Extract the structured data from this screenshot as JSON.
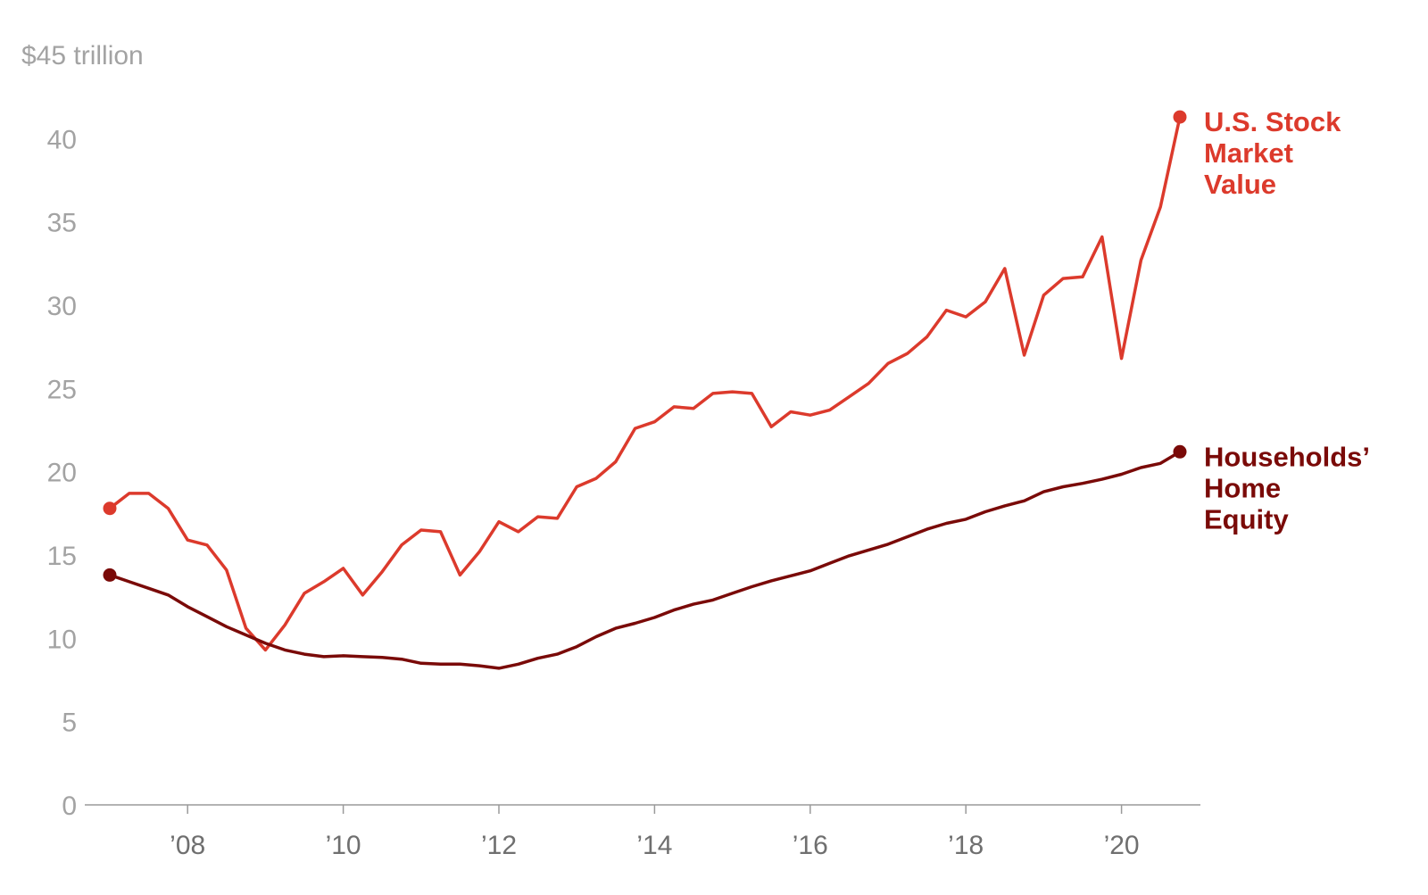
{
  "chart_data": {
    "type": "line",
    "y_unit_label": "$45 trillion",
    "ylim": [
      0,
      45
    ],
    "y_ticks": [
      0,
      5,
      10,
      15,
      20,
      25,
      30,
      35,
      40
    ],
    "y_top_tick": 45,
    "xlim": [
      2007.0,
      2020.9
    ],
    "x_ticks": [
      {
        "value": 2008,
        "label": "’08"
      },
      {
        "value": 2010,
        "label": "’10"
      },
      {
        "value": 2012,
        "label": "’12"
      },
      {
        "value": 2014,
        "label": "’14"
      },
      {
        "value": 2016,
        "label": "’16"
      },
      {
        "value": 2018,
        "label": "’18"
      },
      {
        "value": 2020,
        "label": "’20"
      }
    ],
    "grid": false,
    "series": [
      {
        "name": "U.S. Stock Market Value",
        "label_lines": [
          "U.S. Stock",
          "Market",
          "Value"
        ],
        "color": "#dc3a2c",
        "points": [
          [
            2007.0,
            17.8
          ],
          [
            2007.25,
            18.7
          ],
          [
            2007.5,
            18.7
          ],
          [
            2007.75,
            17.8
          ],
          [
            2008.0,
            15.9
          ],
          [
            2008.25,
            15.6
          ],
          [
            2008.5,
            14.1
          ],
          [
            2008.75,
            10.6
          ],
          [
            2009.0,
            9.3
          ],
          [
            2009.25,
            10.8
          ],
          [
            2009.5,
            12.7
          ],
          [
            2009.75,
            13.4
          ],
          [
            2010.0,
            14.2
          ],
          [
            2010.25,
            12.6
          ],
          [
            2010.5,
            14.0
          ],
          [
            2010.75,
            15.6
          ],
          [
            2011.0,
            16.5
          ],
          [
            2011.25,
            16.4
          ],
          [
            2011.5,
            13.8
          ],
          [
            2011.75,
            15.2
          ],
          [
            2012.0,
            17.0
          ],
          [
            2012.25,
            16.4
          ],
          [
            2012.5,
            17.3
          ],
          [
            2012.75,
            17.2
          ],
          [
            2013.0,
            19.1
          ],
          [
            2013.25,
            19.6
          ],
          [
            2013.5,
            20.6
          ],
          [
            2013.75,
            22.6
          ],
          [
            2014.0,
            23.0
          ],
          [
            2014.25,
            23.9
          ],
          [
            2014.5,
            23.8
          ],
          [
            2014.75,
            24.7
          ],
          [
            2015.0,
            24.8
          ],
          [
            2015.25,
            24.7
          ],
          [
            2015.5,
            22.7
          ],
          [
            2015.75,
            23.6
          ],
          [
            2016.0,
            23.4
          ],
          [
            2016.25,
            23.7
          ],
          [
            2016.5,
            24.5
          ],
          [
            2016.75,
            25.3
          ],
          [
            2017.0,
            26.5
          ],
          [
            2017.25,
            27.1
          ],
          [
            2017.5,
            28.1
          ],
          [
            2017.75,
            29.7
          ],
          [
            2018.0,
            29.3
          ],
          [
            2018.25,
            30.2
          ],
          [
            2018.5,
            32.2
          ],
          [
            2018.75,
            27.0
          ],
          [
            2019.0,
            30.6
          ],
          [
            2019.25,
            31.6
          ],
          [
            2019.5,
            31.7
          ],
          [
            2019.75,
            34.1
          ],
          [
            2020.0,
            26.8
          ],
          [
            2020.25,
            32.7
          ],
          [
            2020.5,
            35.9
          ],
          [
            2020.75,
            41.3
          ]
        ]
      },
      {
        "name": "Households’ Home Equity",
        "label_lines": [
          "Households’",
          "Home",
          "Equity"
        ],
        "color": "#7a0a08",
        "points": [
          [
            2007.0,
            13.8
          ],
          [
            2007.25,
            13.4
          ],
          [
            2007.5,
            13.0
          ],
          [
            2007.75,
            12.6
          ],
          [
            2008.0,
            11.9
          ],
          [
            2008.25,
            11.3
          ],
          [
            2008.5,
            10.7
          ],
          [
            2008.75,
            10.2
          ],
          [
            2009.0,
            9.7
          ],
          [
            2009.25,
            9.3
          ],
          [
            2009.5,
            9.05
          ],
          [
            2009.75,
            8.9
          ],
          [
            2010.0,
            8.95
          ],
          [
            2010.25,
            8.9
          ],
          [
            2010.5,
            8.85
          ],
          [
            2010.75,
            8.75
          ],
          [
            2011.0,
            8.5
          ],
          [
            2011.25,
            8.45
          ],
          [
            2011.5,
            8.45
          ],
          [
            2011.75,
            8.35
          ],
          [
            2012.0,
            8.2
          ],
          [
            2012.25,
            8.45
          ],
          [
            2012.5,
            8.8
          ],
          [
            2012.75,
            9.05
          ],
          [
            2013.0,
            9.5
          ],
          [
            2013.25,
            10.1
          ],
          [
            2013.5,
            10.6
          ],
          [
            2013.75,
            10.9
          ],
          [
            2014.0,
            11.25
          ],
          [
            2014.25,
            11.7
          ],
          [
            2014.5,
            12.05
          ],
          [
            2014.75,
            12.3
          ],
          [
            2015.0,
            12.7
          ],
          [
            2015.25,
            13.1
          ],
          [
            2015.5,
            13.45
          ],
          [
            2015.75,
            13.75
          ],
          [
            2016.0,
            14.05
          ],
          [
            2016.25,
            14.5
          ],
          [
            2016.5,
            14.95
          ],
          [
            2016.75,
            15.3
          ],
          [
            2017.0,
            15.65
          ],
          [
            2017.25,
            16.1
          ],
          [
            2017.5,
            16.55
          ],
          [
            2017.75,
            16.9
          ],
          [
            2018.0,
            17.15
          ],
          [
            2018.25,
            17.6
          ],
          [
            2018.5,
            17.95
          ],
          [
            2018.75,
            18.25
          ],
          [
            2019.0,
            18.8
          ],
          [
            2019.25,
            19.1
          ],
          [
            2019.5,
            19.3
          ],
          [
            2019.75,
            19.55
          ],
          [
            2020.0,
            19.85
          ],
          [
            2020.25,
            20.25
          ],
          [
            2020.5,
            20.5
          ],
          [
            2020.75,
            21.2
          ]
        ]
      }
    ]
  }
}
